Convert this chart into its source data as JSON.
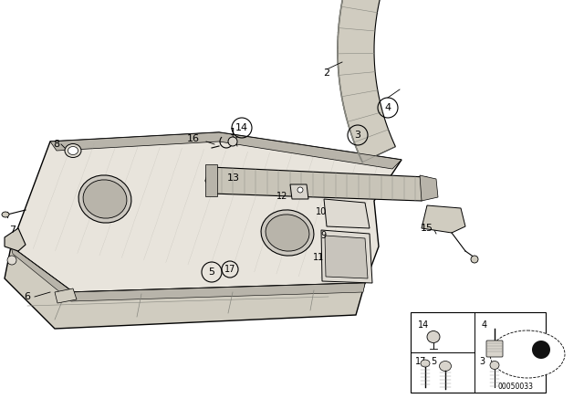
{
  "bg_color": "#ffffff",
  "line_color": "#000000",
  "shelf_color": "#e8e4dc",
  "shelf_dark": "#b8b4aa",
  "trim_color": "#d0ccc0",
  "rail_color": "#c8c4b8",
  "curve_color": "#d0ccc0",
  "blind_color": "#dedad2",
  "watermark": "00050033",
  "label_fontsize": 8,
  "circle_fontsize": 8,
  "circle_r": 9
}
